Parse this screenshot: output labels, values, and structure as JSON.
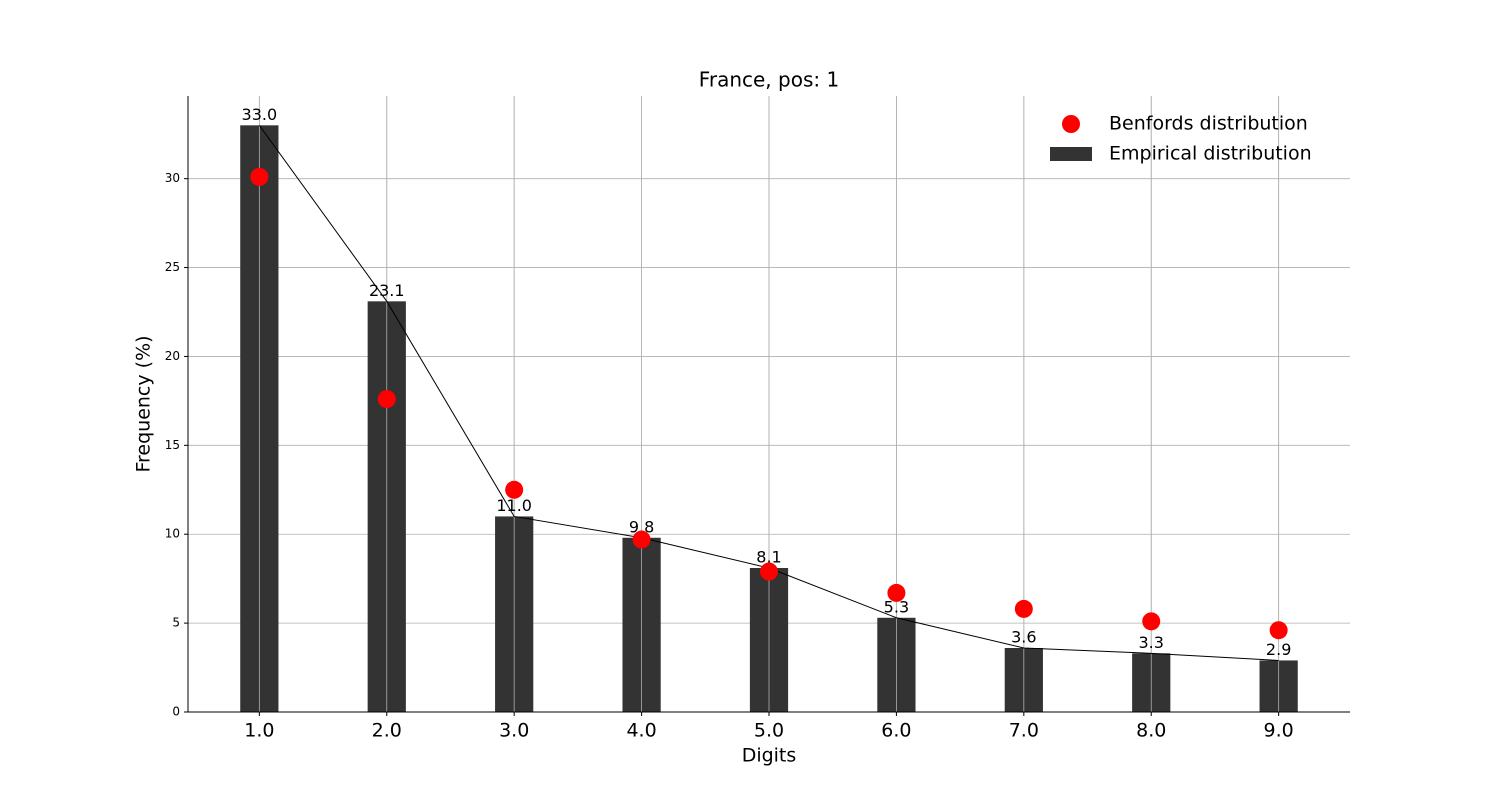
{
  "chart_data": {
    "type": "bar",
    "title": "France, pos: 1",
    "x_label": "Digits",
    "y_label": "Frequency (%)",
    "x": [
      1,
      2,
      3,
      4,
      5,
      6,
      7,
      8,
      9
    ],
    "series": [
      {
        "name": "Benfords distribution",
        "type": "scatter",
        "color": "#ff0000",
        "values": [
          30.1,
          17.6,
          12.5,
          9.7,
          7.9,
          6.7,
          5.8,
          5.1,
          4.6
        ]
      },
      {
        "name": "Empirical distribution",
        "type": "bar",
        "color": "#333333",
        "line_color": "#000000",
        "values": [
          33.0,
          23.1,
          11.0,
          9.8,
          8.1,
          5.3,
          3.6,
          3.3,
          2.9
        ],
        "value_labels": [
          "33.0",
          "23.1",
          "11.0",
          "9.8",
          "8.1",
          "5.3",
          "3.6",
          "3.3",
          "2.9"
        ]
      }
    ],
    "xlim": [
      0.44,
      9.56
    ],
    "ylim": [
      0,
      34.65
    ],
    "xticks": [
      {
        "value": 1,
        "label": "1.0"
      },
      {
        "value": 2,
        "label": "2.0"
      },
      {
        "value": 3,
        "label": "3.0"
      },
      {
        "value": 4,
        "label": "4.0"
      },
      {
        "value": 5,
        "label": "5.0"
      },
      {
        "value": 6,
        "label": "6.0"
      },
      {
        "value": 7,
        "label": "7.0"
      },
      {
        "value": 8,
        "label": "8.0"
      },
      {
        "value": 9,
        "label": "9.0"
      }
    ],
    "yticks": [
      0,
      5,
      10,
      15,
      20,
      25,
      30
    ],
    "grid": true,
    "legend": "upper right"
  }
}
